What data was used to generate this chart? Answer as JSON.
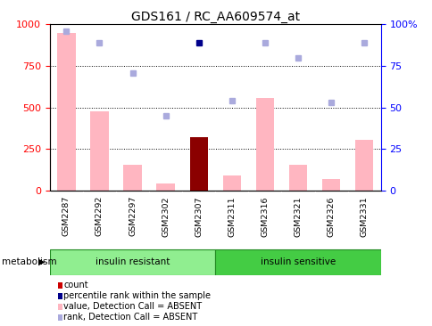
{
  "title": "GDS161 / RC_AA609574_at",
  "samples": [
    "GSM2287",
    "GSM2292",
    "GSM2297",
    "GSM2302",
    "GSM2307",
    "GSM2311",
    "GSM2316",
    "GSM2321",
    "GSM2326",
    "GSM2331"
  ],
  "groups": [
    {
      "label": "insulin resistant",
      "n": 5,
      "color": "#90EE90"
    },
    {
      "label": "insulin sensitive",
      "n": 5,
      "color": "#44CC44"
    }
  ],
  "value_bars": [
    950,
    480,
    155,
    45,
    0,
    90,
    560,
    155,
    70,
    305
  ],
  "count_bars": [
    0,
    0,
    0,
    0,
    320,
    0,
    0,
    0,
    0,
    0
  ],
  "rank_pct": [
    96,
    89,
    71,
    45,
    89,
    54,
    89,
    80,
    53,
    89
  ],
  "rank_dot_dark_index": 4,
  "value_bar_color": "#FFB6C1",
  "count_bar_color": "#8B0000",
  "rank_dot_color_dark": "#00008B",
  "rank_dot_color_light": "#AAAADD",
  "ylim_left": [
    0,
    1000
  ],
  "ylim_right": [
    0,
    100
  ],
  "yticks_left": [
    0,
    250,
    500,
    750,
    1000
  ],
  "yticks_right": [
    0,
    25,
    50,
    75,
    100
  ],
  "grid_values": [
    250,
    500,
    750
  ],
  "metabolism_label": "metabolism",
  "legend_items": [
    {
      "color": "#CC0000",
      "label": "count"
    },
    {
      "color": "#00008B",
      "label": "percentile rank within the sample"
    },
    {
      "color": "#FFB6C1",
      "label": "value, Detection Call = ABSENT"
    },
    {
      "color": "#AAAADD",
      "label": "rank, Detection Call = ABSENT"
    }
  ],
  "bg_color": "#FFFFFF",
  "tick_area_color": "#D3D3D3",
  "group_border_color": "#228B22"
}
